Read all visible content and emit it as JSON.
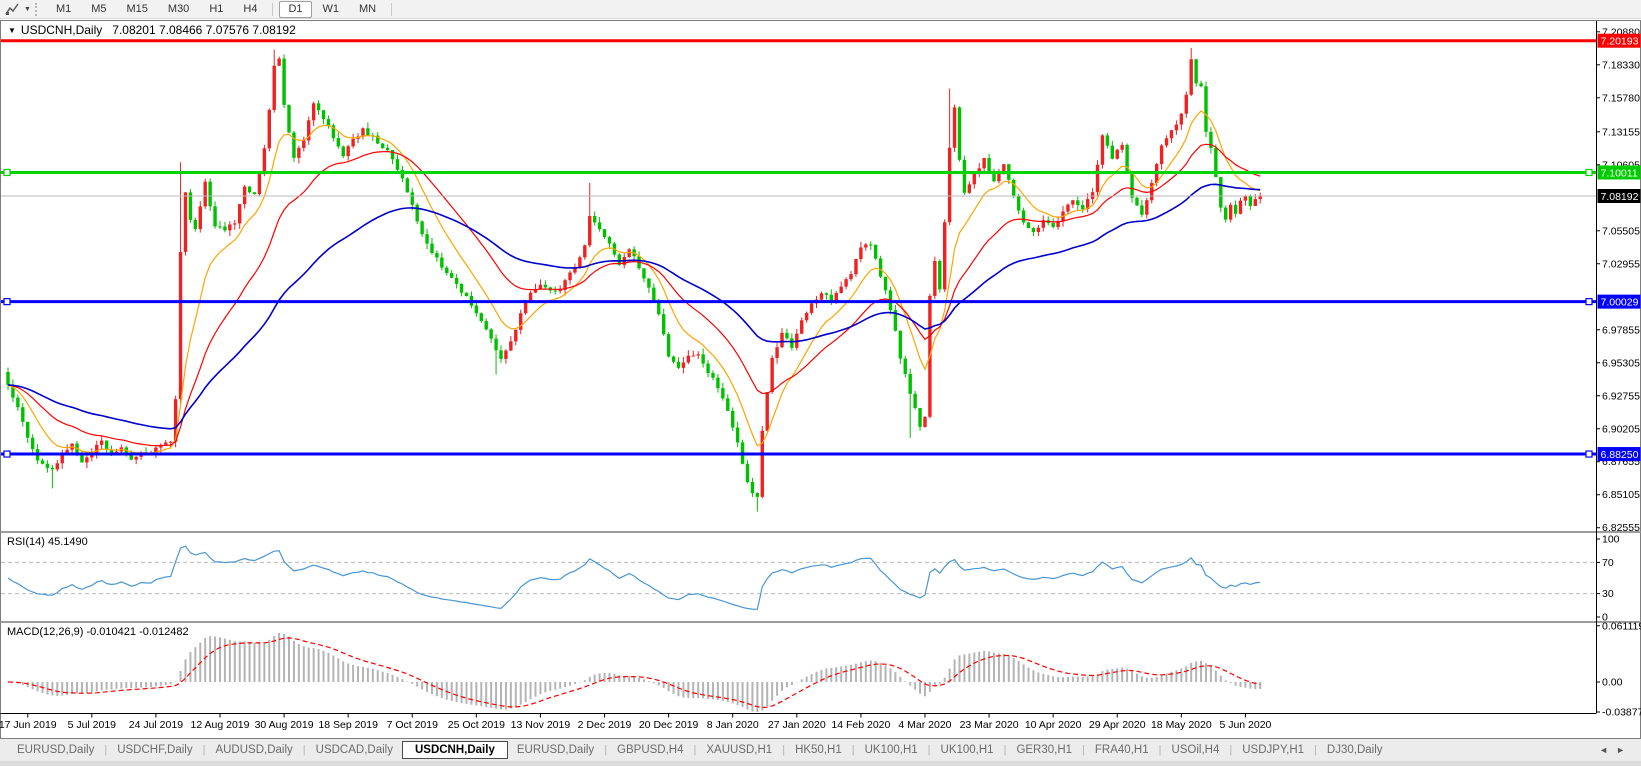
{
  "toolbar": {
    "chart_tool_icon": "zigzag-chart-icon",
    "dropdown_caret": "▼",
    "periods": [
      {
        "label": "M1",
        "active": false
      },
      {
        "label": "M5",
        "active": false
      },
      {
        "label": "M15",
        "active": false
      },
      {
        "label": "M30",
        "active": false
      },
      {
        "label": "H1",
        "active": false
      },
      {
        "label": "H4",
        "active": false
      },
      {
        "label": "D1",
        "active": true
      },
      {
        "label": "W1",
        "active": false
      },
      {
        "label": "MN",
        "active": false
      }
    ]
  },
  "window": {
    "collapse_marker": "▼",
    "symbol": "USDCNH,Daily",
    "ohlc": "7.08201 7.08466 7.07576 7.08192"
  },
  "indicators": {
    "rsi_label": "RSI(14) 45.1490",
    "macd_label": "MACD(12,26,9) -0.010421 -0.012482"
  },
  "axis": {
    "price_ticks": [
      {
        "v": 7.2088,
        "label": "7.20880"
      },
      {
        "v": 7.1833,
        "label": "7.18330"
      },
      {
        "v": 7.1578,
        "label": "7.15780"
      },
      {
        "v": 7.13155,
        "label": "7.13155"
      },
      {
        "v": 7.10605,
        "label": "7.10605"
      },
      {
        "v": 7.05505,
        "label": "7.05505"
      },
      {
        "v": 7.02955,
        "label": "7.02955"
      },
      {
        "v": 6.97855,
        "label": "6.97855"
      },
      {
        "v": 6.95305,
        "label": "6.95305"
      },
      {
        "v": 6.92755,
        "label": "6.92755"
      },
      {
        "v": 6.90205,
        "label": "6.90205"
      },
      {
        "v": 6.87655,
        "label": "6.87655"
      },
      {
        "v": 6.85105,
        "label": "6.85105"
      },
      {
        "v": 6.82555,
        "label": "6.82555"
      }
    ],
    "rsi_ticks": [
      {
        "v": 100,
        "label": "100",
        "dashed": false
      },
      {
        "v": 70,
        "label": "70",
        "dashed": true
      },
      {
        "v": 30,
        "label": "30",
        "dashed": true
      },
      {
        "v": 0,
        "label": "0",
        "dashed": false
      }
    ],
    "macd_ticks": [
      {
        "v": 0.061119,
        "label": "0.061119"
      },
      {
        "v": 0,
        "label": "0.00"
      },
      {
        "v": -0.038777,
        "label": "-0.038777"
      }
    ],
    "date_ticks": [
      {
        "label": "17 Jun 2019",
        "i": 4
      },
      {
        "label": "5 Jul 2019",
        "i": 17
      },
      {
        "label": "24 Jul 2019",
        "i": 30
      },
      {
        "label": "12 Aug 2019",
        "i": 43
      },
      {
        "label": "30 Aug 2019",
        "i": 56
      },
      {
        "label": "18 Sep 2019",
        "i": 69
      },
      {
        "label": "7 Oct 2019",
        "i": 82
      },
      {
        "label": "25 Oct 2019",
        "i": 95
      },
      {
        "label": "13 Nov 2019",
        "i": 108
      },
      {
        "label": "2 Dec 2019",
        "i": 121
      },
      {
        "label": "20 Dec 2019",
        "i": 134
      },
      {
        "label": "8 Jan 2020",
        "i": 147
      },
      {
        "label": "27 Jan 2020",
        "i": 160
      },
      {
        "label": "14 Feb 2020",
        "i": 173
      },
      {
        "label": "4 Mar 2020",
        "i": 186
      },
      {
        "label": "23 Mar 2020",
        "i": 199
      },
      {
        "label": "10 Apr 2020",
        "i": 212
      },
      {
        "label": "29 Apr 2020",
        "i": 225
      },
      {
        "label": "18 May 2020",
        "i": 238
      },
      {
        "label": "5 Jun 2020",
        "i": 251
      }
    ]
  },
  "chart_data": {
    "type": "candlestick",
    "symbol": "USDCNH",
    "timeframe": "Daily",
    "bar_count": 255,
    "last_close": 7.08192,
    "colors": {
      "up": "#ee2222",
      "down": "#00c000",
      "ma_fast": "#ffa500",
      "ma_mid": "#ff0000",
      "ma_slow": "#0000cc",
      "rsi": "#4a96d2",
      "macd_hist": "#b4b4b4",
      "macd_signal": "#ff0000",
      "level_red": "#ff0000",
      "level_green": "#00d400",
      "level_blue": "#0000ff",
      "current_line": "#b8b8b8"
    },
    "ma_periods": {
      "fast": 10,
      "mid": 25,
      "slow": 58
    },
    "levels": [
      {
        "price": 7.20193,
        "label": "7.20193",
        "color": "#ff0000",
        "badge_bg": "#ff0000",
        "width": 3,
        "handles": false
      },
      {
        "price": 7.10011,
        "label": "7.10011",
        "color": "#00d400",
        "badge_bg": "#00cc00",
        "width": 3,
        "handles": true
      },
      {
        "price": 7.08192,
        "label": "7.08192",
        "color": "#b8b8b8",
        "badge_bg": "#000000",
        "width": 1,
        "handles": false
      },
      {
        "price": 7.00029,
        "label": "7.00029",
        "color": "#0000ff",
        "badge_bg": "#0000ff",
        "width": 3,
        "handles": true
      },
      {
        "price": 6.8825,
        "label": "6.88250",
        "color": "#0000ff",
        "badge_bg": "#0000ff",
        "width": 3,
        "handles": true
      }
    ],
    "anchors": [
      [
        0,
        6.935
      ],
      [
        2,
        6.92
      ],
      [
        4,
        6.896
      ],
      [
        6,
        6.878
      ],
      [
        9,
        6.869
      ],
      [
        11,
        6.884
      ],
      [
        13,
        6.889
      ],
      [
        15,
        6.876
      ],
      [
        17,
        6.884
      ],
      [
        19,
        6.893
      ],
      [
        21,
        6.882
      ],
      [
        23,
        6.886
      ],
      [
        25,
        6.878
      ],
      [
        27,
        6.885
      ],
      [
        29,
        6.883
      ],
      [
        31,
        6.889
      ],
      [
        33,
        6.891
      ],
      [
        34,
        6.925
      ],
      [
        35,
        7.04
      ],
      [
        36,
        7.085
      ],
      [
        37,
        7.062
      ],
      [
        38,
        7.055
      ],
      [
        40,
        7.092
      ],
      [
        42,
        7.058
      ],
      [
        44,
        7.056
      ],
      [
        46,
        7.062
      ],
      [
        48,
        7.088
      ],
      [
        50,
        7.082
      ],
      [
        52,
        7.118
      ],
      [
        54,
        7.182
      ],
      [
        55,
        7.188
      ],
      [
        56,
        7.152
      ],
      [
        58,
        7.11
      ],
      [
        60,
        7.125
      ],
      [
        62,
        7.155
      ],
      [
        64,
        7.142
      ],
      [
        66,
        7.128
      ],
      [
        68,
        7.112
      ],
      [
        70,
        7.126
      ],
      [
        72,
        7.133
      ],
      [
        74,
        7.128
      ],
      [
        76,
        7.12
      ],
      [
        78,
        7.112
      ],
      [
        80,
        7.095
      ],
      [
        82,
        7.075
      ],
      [
        84,
        7.052
      ],
      [
        86,
        7.038
      ],
      [
        88,
        7.028
      ],
      [
        90,
        7.02
      ],
      [
        92,
        7.008
      ],
      [
        94,
        6.998
      ],
      [
        96,
        6.985
      ],
      [
        98,
        6.97
      ],
      [
        100,
        6.955
      ],
      [
        102,
        6.968
      ],
      [
        104,
        6.99
      ],
      [
        106,
        7.008
      ],
      [
        108,
        7.015
      ],
      [
        110,
        7.01
      ],
      [
        112,
        7.01
      ],
      [
        114,
        7.022
      ],
      [
        116,
        7.035
      ],
      [
        117,
        7.045
      ],
      [
        118,
        7.068
      ],
      [
        120,
        7.058
      ],
      [
        122,
        7.045
      ],
      [
        124,
        7.03
      ],
      [
        126,
        7.042
      ],
      [
        128,
        7.026
      ],
      [
        130,
        7.012
      ],
      [
        132,
        6.99
      ],
      [
        134,
        6.958
      ],
      [
        136,
        6.948
      ],
      [
        138,
        6.958
      ],
      [
        140,
        6.958
      ],
      [
        142,
        6.946
      ],
      [
        144,
        6.934
      ],
      [
        146,
        6.916
      ],
      [
        148,
        6.89
      ],
      [
        150,
        6.86
      ],
      [
        152,
        6.848
      ],
      [
        153,
        6.9
      ],
      [
        154,
        6.93
      ],
      [
        155,
        6.958
      ],
      [
        157,
        6.975
      ],
      [
        159,
        6.966
      ],
      [
        161,
        6.986
      ],
      [
        163,
        6.998
      ],
      [
        165,
        7.008
      ],
      [
        167,
        7.0
      ],
      [
        169,
        7.012
      ],
      [
        171,
        7.022
      ],
      [
        173,
        7.042
      ],
      [
        175,
        7.045
      ],
      [
        177,
        7.02
      ],
      [
        179,
        6.995
      ],
      [
        181,
        6.958
      ],
      [
        183,
        6.93
      ],
      [
        185,
        6.905
      ],
      [
        186,
        6.912
      ],
      [
        187,
        7.005
      ],
      [
        188,
        7.03
      ],
      [
        189,
        7.01
      ],
      [
        190,
        7.06
      ],
      [
        191,
        7.12
      ],
      [
        192,
        7.15
      ],
      [
        193,
        7.11
      ],
      [
        194,
        7.086
      ],
      [
        196,
        7.098
      ],
      [
        198,
        7.112
      ],
      [
        200,
        7.092
      ],
      [
        202,
        7.108
      ],
      [
        204,
        7.082
      ],
      [
        206,
        7.062
      ],
      [
        208,
        7.054
      ],
      [
        210,
        7.062
      ],
      [
        212,
        7.058
      ],
      [
        214,
        7.07
      ],
      [
        216,
        7.08
      ],
      [
        218,
        7.072
      ],
      [
        220,
        7.085
      ],
      [
        222,
        7.128
      ],
      [
        224,
        7.112
      ],
      [
        226,
        7.12
      ],
      [
        228,
        7.082
      ],
      [
        230,
        7.068
      ],
      [
        232,
        7.092
      ],
      [
        234,
        7.122
      ],
      [
        236,
        7.132
      ],
      [
        238,
        7.145
      ],
      [
        239,
        7.16
      ],
      [
        240,
        7.188
      ],
      [
        241,
        7.17
      ],
      [
        242,
        7.165
      ],
      [
        243,
        7.132
      ],
      [
        244,
        7.118
      ],
      [
        245,
        7.095
      ],
      [
        246,
        7.072
      ],
      [
        247,
        7.062
      ],
      [
        248,
        7.075
      ],
      [
        249,
        7.068
      ],
      [
        250,
        7.078
      ],
      [
        251,
        7.082
      ],
      [
        252,
        7.074
      ],
      [
        253,
        7.079
      ],
      [
        254,
        7.08192
      ]
    ],
    "wick_overrides": {
      "9": {
        "l": 6.856
      },
      "35": {
        "h": 7.108
      },
      "54": {
        "h": 7.195
      },
      "99": {
        "l": 6.944
      },
      "118": {
        "h": 7.092
      },
      "152": {
        "l": 6.838
      },
      "183": {
        "l": 6.895
      },
      "191": {
        "h": 7.165
      },
      "240": {
        "h": 7.1964
      }
    }
  },
  "tabs": {
    "separator": "|",
    "nav_left": "◄",
    "nav_right": "►",
    "items": [
      {
        "label": "EURUSD,Daily",
        "active": false
      },
      {
        "label": "USDCHF,Daily",
        "active": false
      },
      {
        "label": "AUDUSD,Daily",
        "active": false
      },
      {
        "label": "USDCAD,Daily",
        "active": false
      },
      {
        "label": "USDCNH,Daily",
        "active": true
      },
      {
        "label": "EURUSD,Daily",
        "active": false
      },
      {
        "label": "GBPUSD,H4",
        "active": false
      },
      {
        "label": "XAUUSD,H1",
        "active": false
      },
      {
        "label": "HK50,H1",
        "active": false
      },
      {
        "label": "UK100,H1",
        "active": false
      },
      {
        "label": "UK100,H1",
        "active": false
      },
      {
        "label": "GER30,H1",
        "active": false
      },
      {
        "label": "FRA40,H1",
        "active": false
      },
      {
        "label": "USOil,H4",
        "active": false
      },
      {
        "label": "USDJPY,H1",
        "active": false
      },
      {
        "label": "DJ30,Daily",
        "active": false
      }
    ]
  }
}
